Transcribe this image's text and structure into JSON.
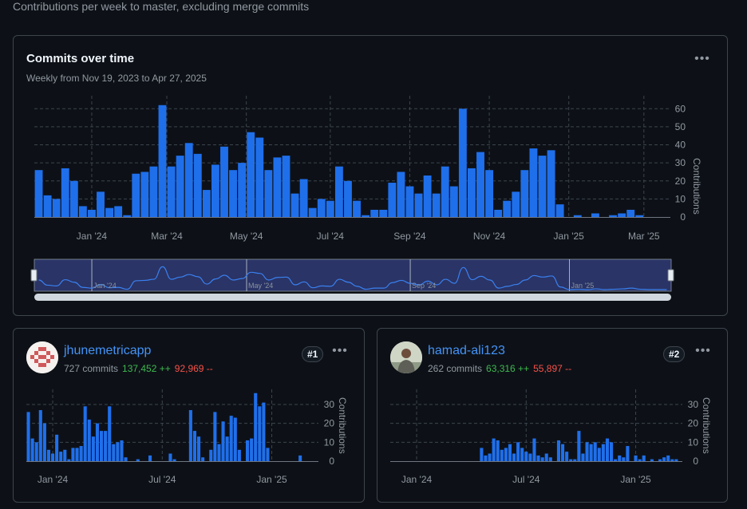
{
  "header": {
    "subtitle": "Contributions per week to master, excluding merge commits"
  },
  "main_chart": {
    "title": "Commits over time",
    "subtitle": "Weekly from Nov 19, 2023 to Apr 27, 2025",
    "ylabel": "Contributions",
    "bar_color": "#1f6feb",
    "x_ticks": [
      "Jan '24",
      "Mar '24",
      "May '24",
      "Jul '24",
      "Sep '24",
      "Nov '24",
      "Jan '25",
      "Mar '25"
    ],
    "brush_labels": [
      "Jan '24",
      "May '24",
      "Sep '24",
      "Jan '25"
    ]
  },
  "contributors": [
    {
      "name": "jhunemetricapp",
      "commits": "727 commits",
      "additions": "137,452 ++",
      "deletions": "92,969 --",
      "rank": "#1"
    },
    {
      "name": "hamad-ali123",
      "commits": "262 commits",
      "additions": "63,316 ++",
      "deletions": "55,897 --",
      "rank": "#2"
    }
  ],
  "mini_chart": {
    "ylabel": "Contributions",
    "x_ticks": [
      "Jan '24",
      "Jul '24",
      "Jan '25"
    ]
  },
  "chart_data": [
    {
      "type": "bar",
      "title": "Commits over time",
      "x_start": "2023-11-19",
      "x_end": "2025-04-27",
      "ylabel": "Contributions",
      "ylim": [
        0,
        65
      ],
      "yticks": [
        0,
        10,
        20,
        30,
        40,
        50,
        60
      ],
      "grid": true,
      "values": [
        26,
        12,
        10,
        27,
        20,
        6,
        4,
        14,
        5,
        6,
        1,
        24,
        25,
        28,
        62,
        28,
        34,
        41,
        35,
        15,
        29,
        39,
        26,
        30,
        47,
        44,
        26,
        33,
        34,
        13,
        21,
        5,
        10,
        9,
        28,
        20,
        9,
        1,
        4,
        4,
        19,
        25,
        17,
        13,
        23,
        13,
        28,
        17,
        60,
        27,
        36,
        26,
        4,
        9,
        14,
        26,
        38,
        34,
        37,
        7,
        0,
        1,
        0,
        2,
        0,
        1,
        2,
        4,
        1,
        0,
        0,
        0
      ]
    },
    {
      "type": "bar",
      "title": "",
      "series_name": "jhunemetricapp",
      "ylabel": "Contributions",
      "ylim": [
        0,
        38
      ],
      "yticks": [
        0,
        10,
        20,
        30
      ],
      "grid": true,
      "values": [
        26,
        12,
        10,
        27,
        20,
        6,
        4,
        14,
        5,
        6,
        1,
        7,
        7,
        8,
        29,
        22,
        13,
        20,
        16,
        16,
        29,
        9,
        10,
        11,
        2,
        0,
        0,
        1,
        0,
        0,
        3,
        0,
        0,
        0,
        0,
        4,
        1,
        0,
        0,
        0,
        27,
        16,
        13,
        2,
        0,
        6,
        26,
        9,
        21,
        13,
        24,
        23,
        6,
        0,
        11,
        12,
        36,
        29,
        31,
        7,
        0,
        0,
        0,
        0,
        0,
        0,
        0,
        3,
        0,
        0,
        0,
        0
      ]
    },
    {
      "type": "bar",
      "title": "",
      "series_name": "hamad-ali123",
      "ylabel": "Contributions",
      "ylim": [
        0,
        38
      ],
      "yticks": [
        0,
        10,
        20,
        30
      ],
      "grid": true,
      "values": [
        0,
        0,
        0,
        0,
        0,
        0,
        0,
        0,
        0,
        0,
        0,
        0,
        0,
        0,
        0,
        0,
        0,
        0,
        0,
        0,
        0,
        0,
        7,
        3,
        4,
        12,
        11,
        6,
        7,
        9,
        4,
        10,
        7,
        5,
        4,
        12,
        3,
        2,
        4,
        2,
        0,
        11,
        9,
        5,
        1,
        1,
        16,
        4,
        10,
        9,
        10,
        7,
        9,
        12,
        10,
        1,
        3,
        2,
        8,
        0,
        3,
        1,
        3,
        0,
        1,
        0,
        1,
        2,
        3,
        1,
        1,
        0
      ]
    }
  ]
}
